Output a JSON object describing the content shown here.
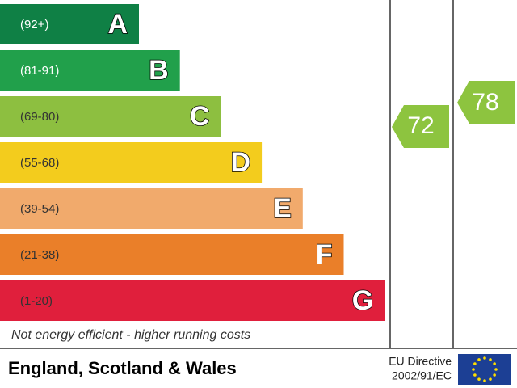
{
  "bands": [
    {
      "range": "(92+)",
      "letter": "A",
      "color": "#0f8045"
    },
    {
      "range": "(81-91)",
      "letter": "B",
      "color": "#21a04b"
    },
    {
      "range": "(69-80)",
      "letter": "C",
      "color": "#8dbf40"
    },
    {
      "range": "(55-68)",
      "letter": "D",
      "color": "#f3cc1d"
    },
    {
      "range": "(39-54)",
      "letter": "E",
      "color": "#f1aa6c"
    },
    {
      "range": "(21-38)",
      "letter": "F",
      "color": "#ea7f29"
    },
    {
      "range": "(1-20)",
      "letter": "G",
      "color": "#e01f3c"
    }
  ],
  "current": "72",
  "potential": "78",
  "footnote": "Not energy efficient - higher running costs",
  "region": "England, Scotland & Wales",
  "directive": {
    "line1": "EU Directive",
    "line2": "2002/91/EC"
  }
}
